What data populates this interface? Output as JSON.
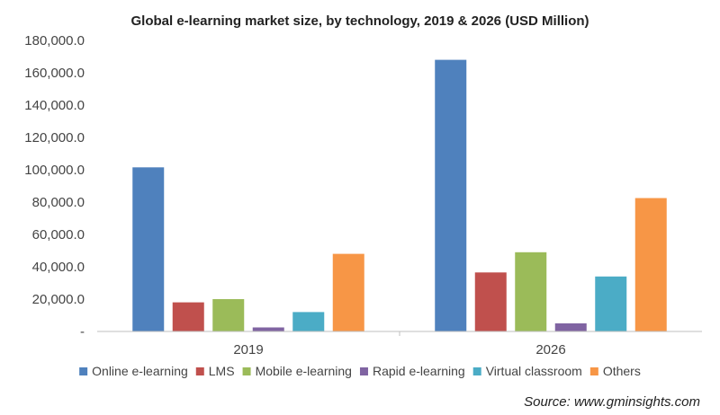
{
  "chart_data": {
    "type": "bar",
    "title": "Global  e-learning market size, by  technology,  2019 & 2026 (USD  Million)",
    "xlabel": "",
    "ylabel": "",
    "categories": [
      "2019",
      "2026"
    ],
    "ylim": [
      0,
      180000
    ],
    "yticks": [
      0,
      20000,
      40000,
      60000,
      80000,
      100000,
      120000,
      140000,
      160000,
      180000
    ],
    "ytick_labels": [
      "-",
      "20,000.0",
      "40,000.0",
      "60,000.0",
      "80,000.0",
      "100,000.0",
      "120,000.0",
      "140,000.0",
      "160,000.0",
      "180,000.0"
    ],
    "grid": false,
    "legend_position": "bottom",
    "series": [
      {
        "name": "Online e-learning",
        "color": "#4f81bd",
        "values": [
          101500,
          168000
        ]
      },
      {
        "name": "LMS",
        "color": "#c0504d",
        "values": [
          18000,
          36500
        ]
      },
      {
        "name": "Mobile e-learning",
        "color": "#9bbb59",
        "values": [
          20000,
          49000
        ]
      },
      {
        "name": "Rapid e-learning",
        "color": "#8064a2",
        "values": [
          2500,
          5000
        ]
      },
      {
        "name": "Virtual classroom",
        "color": "#4bacc6",
        "values": [
          12000,
          34000
        ]
      },
      {
        "name": "Others",
        "color": "#f79646",
        "values": [
          48000,
          82500
        ]
      }
    ],
    "source": "Source: www.gminsights.com"
  }
}
